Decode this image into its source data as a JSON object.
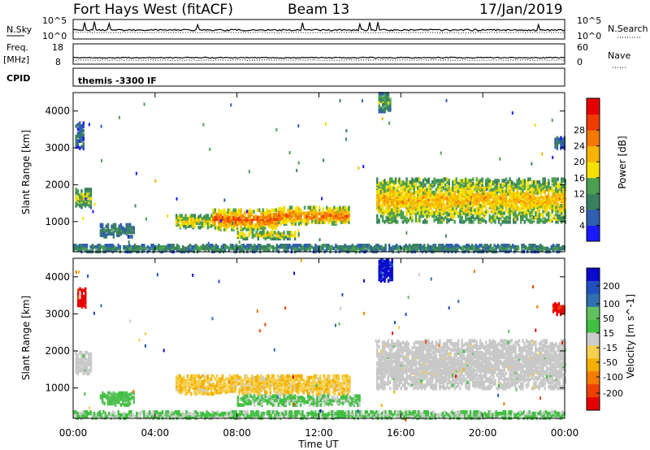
{
  "header": {
    "title": "Fort Hays West (fitACF)",
    "beam": "Beam 13",
    "date": "17/Jan/2019"
  },
  "summary_panel": {
    "left_label": "N.Sky",
    "left_ticks": [
      "10^5",
      "10^0"
    ],
    "right_ticks": [
      "10^5",
      "10^0"
    ],
    "right_label": "N.Search",
    "freq_label_top": "Freq.",
    "freq_label_unit": "[MHz]",
    "freq_ticks": [
      "18",
      "8"
    ],
    "nave_ticks": [
      "60",
      "0"
    ],
    "nave_label": "Nave",
    "cpid_label": "CPID",
    "cpid_value": "themis -3300 IF"
  },
  "colors": {
    "power_scale": [
      "#1a1aff",
      "#2f5fb0",
      "#3a8060",
      "#4aa050",
      "#f5e000",
      "#f5b400",
      "#f57800",
      "#f03c00",
      "#e60000"
    ],
    "velocity_scale": [
      "#e60000",
      "#f04000",
      "#f57a00",
      "#f5b000",
      "#f5d050",
      "#cccccc",
      "#40c040",
      "#60c060",
      "#3070b0",
      "#2050c0",
      "#0a0acc"
    ],
    "ground_scatter": "#c8c8c8"
  },
  "chart_data": [
    {
      "type": "heatmap",
      "title": "",
      "xlabel": "",
      "ylabel": "Slant Range [km]",
      "xlim": [
        "00:00",
        "24:00"
      ],
      "ylim": [
        180,
        4500
      ],
      "y_ticks": [
        1000,
        2000,
        3000,
        4000
      ],
      "colorbar": {
        "label": "Power [dB]",
        "ticks": [
          "4",
          "8",
          "12",
          "16",
          "20",
          "24",
          "28"
        ]
      },
      "features": [
        {
          "time_start": 0.1,
          "time_end": 0.9,
          "range_start": 1400,
          "range_end": 1900,
          "level": 16
        },
        {
          "time_start": 0.1,
          "time_end": 0.5,
          "range_start": 3000,
          "range_end": 3700,
          "level": 6
        },
        {
          "time_start": 1.3,
          "time_end": 3.0,
          "range_start": 600,
          "range_end": 950,
          "level": 8
        },
        {
          "time_start": 5.0,
          "time_end": 6.8,
          "range_start": 850,
          "range_end": 1200,
          "level": 18
        },
        {
          "time_start": 6.8,
          "time_end": 10.0,
          "range_start": 800,
          "range_end": 1350,
          "level": 26
        },
        {
          "time_start": 10.0,
          "time_end": 13.5,
          "range_start": 950,
          "range_end": 1400,
          "level": 25
        },
        {
          "time_start": 8.0,
          "time_end": 11.0,
          "range_start": 550,
          "range_end": 750,
          "level": 18
        },
        {
          "time_start": 0.0,
          "time_end": 24.0,
          "range_start": 200,
          "range_end": 380,
          "level": 10
        },
        {
          "time_start": 14.8,
          "time_end": 24.0,
          "range_start": 1000,
          "range_end": 2200,
          "level": 20
        },
        {
          "time_start": 14.9,
          "time_end": 15.5,
          "range_start": 4000,
          "range_end": 4500,
          "level": 12
        },
        {
          "time_start": 23.5,
          "time_end": 24.0,
          "range_start": 3000,
          "range_end": 3300,
          "level": 6
        }
      ]
    },
    {
      "type": "heatmap",
      "title": "",
      "xlabel": "Time UT",
      "ylabel": "Slant Range [km]",
      "xlim": [
        "00:00",
        "24:00"
      ],
      "x_ticks": [
        "00:00",
        "04:00",
        "08:00",
        "12:00",
        "16:00",
        "20:00",
        "00:00"
      ],
      "ylim": [
        180,
        4500
      ],
      "y_ticks": [
        1000,
        2000,
        3000,
        4000
      ],
      "colorbar": {
        "label": "Velocity [m s^-1]",
        "ticks": [
          "200",
          "100",
          "50",
          "15",
          "-15",
          "-50",
          "-100",
          "-200"
        ]
      },
      "features": [
        {
          "time_start": 0.1,
          "time_end": 0.9,
          "range_start": 1400,
          "range_end": 2000,
          "velocity": 0,
          "ground_scatter": true
        },
        {
          "time_start": 0.2,
          "time_end": 0.6,
          "range_start": 3200,
          "range_end": 3700,
          "velocity": -200
        },
        {
          "time_start": 1.3,
          "time_end": 3.0,
          "range_start": 550,
          "range_end": 900,
          "velocity": 60
        },
        {
          "time_start": 5.0,
          "time_end": 13.5,
          "range_start": 850,
          "range_end": 1350,
          "velocity": -50
        },
        {
          "time_start": 8.0,
          "time_end": 14.0,
          "range_start": 550,
          "range_end": 800,
          "velocity": 30
        },
        {
          "time_start": 0.0,
          "time_end": 24.0,
          "range_start": 200,
          "range_end": 380,
          "velocity": 30
        },
        {
          "time_start": 14.8,
          "time_end": 24.0,
          "range_start": 1000,
          "range_end": 2300,
          "velocity": 0,
          "ground_scatter": true
        },
        {
          "time_start": 14.9,
          "time_end": 15.6,
          "range_start": 3900,
          "range_end": 4500,
          "velocity": 200
        },
        {
          "time_start": 23.4,
          "time_end": 24.0,
          "range_start": 3000,
          "range_end": 3300,
          "velocity": -200
        }
      ]
    }
  ]
}
